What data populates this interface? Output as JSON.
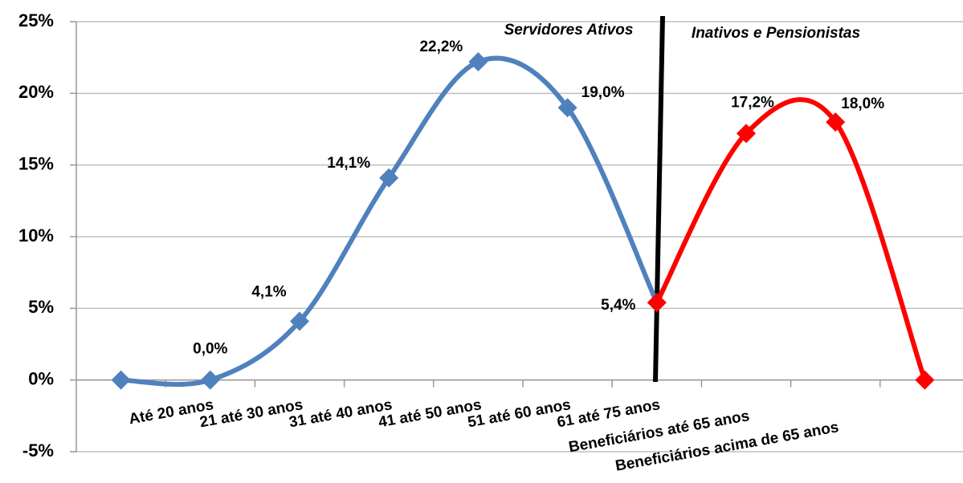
{
  "chart_data": {
    "type": "line",
    "categories": [
      null,
      "Até 20 anos",
      "21 até 30 anos",
      "31 até 40 anos",
      "41 até 50 anos",
      "51 até 60 anos",
      "61 até 75 anos",
      "Beneficiários até 65 anos",
      "Beneficiários acima de 65 anos",
      null
    ],
    "series": [
      {
        "color": "#4f81bd",
        "values": [
          0,
          0,
          4.1,
          14.1,
          22.2,
          19.0,
          5.4,
          null,
          null,
          null
        ],
        "value_labels": [
          null,
          "0,0%",
          "4,1%",
          "14,1%",
          "22,2%",
          "19,0%",
          "5,4%",
          null,
          null,
          null
        ]
      },
      {
        "color": "#ff0000",
        "values": [
          null,
          null,
          null,
          null,
          null,
          null,
          5.4,
          17.2,
          18.0,
          0
        ],
        "value_labels": [
          null,
          null,
          null,
          null,
          null,
          null,
          null,
          "17,2%",
          "18,0%",
          null
        ]
      }
    ],
    "ylim": [
      -5,
      25
    ],
    "yticks": [
      {
        "value": -5,
        "label": "-5%"
      },
      {
        "value": 0,
        "label": "0%"
      },
      {
        "value": 5,
        "label": "5%"
      },
      {
        "value": 10,
        "label": "10%"
      },
      {
        "value": 15,
        "label": "15%"
      },
      {
        "value": 20,
        "label": "20%"
      },
      {
        "value": 25,
        "label": "25%"
      }
    ],
    "grid": true,
    "annotations": [
      "Servidores Ativos",
      "Inativos e Pensionistas"
    ]
  }
}
